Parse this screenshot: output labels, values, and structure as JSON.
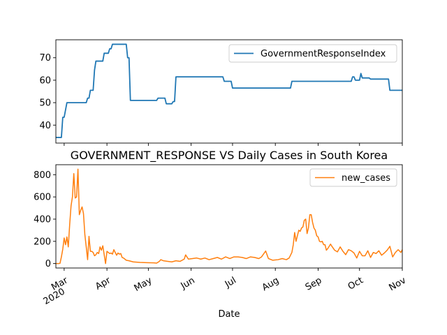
{
  "chart_data": [
    {
      "type": "line",
      "title": "",
      "xlabel": "",
      "ylabel": "",
      "xlim": [
        "2020-02-24",
        "2020-11-01"
      ],
      "ylim": [
        32,
        78
      ],
      "yticks": [
        40,
        50,
        60,
        70
      ],
      "legend": {
        "position": "top-right",
        "entries": [
          "GovernmentResponseIndex"
        ]
      },
      "series": [
        {
          "name": "GovernmentResponseIndex",
          "color": "#1f77b4",
          "points": [
            [
              "2020-02-24",
              34.5
            ],
            [
              "2020-02-28",
              34.5
            ],
            [
              "2020-02-29",
              43.5
            ],
            [
              "2020-03-01",
              43.5
            ],
            [
              "2020-03-03",
              50.0
            ],
            [
              "2020-03-17",
              50.0
            ],
            [
              "2020-03-18",
              52.0
            ],
            [
              "2020-03-19",
              52.0
            ],
            [
              "2020-03-20",
              55.5
            ],
            [
              "2020-03-22",
              55.5
            ],
            [
              "2020-03-23",
              64.5
            ],
            [
              "2020-03-24",
              68.5
            ],
            [
              "2020-03-29",
              68.5
            ],
            [
              "2020-03-30",
              72.0
            ],
            [
              "2020-04-02",
              72.0
            ],
            [
              "2020-04-03",
              74.0
            ],
            [
              "2020-04-04",
              74.0
            ],
            [
              "2020-04-05",
              76.0
            ],
            [
              "2020-04-15",
              76.0
            ],
            [
              "2020-04-16",
              70.0
            ],
            [
              "2020-04-17",
              70.0
            ],
            [
              "2020-04-18",
              51.0
            ],
            [
              "2020-05-07",
              51.0
            ],
            [
              "2020-05-08",
              52.0
            ],
            [
              "2020-05-13",
              52.0
            ],
            [
              "2020-05-14",
              49.5
            ],
            [
              "2020-05-18",
              49.5
            ],
            [
              "2020-05-19",
              50.5
            ],
            [
              "2020-05-20",
              50.5
            ],
            [
              "2020-05-21",
              61.5
            ],
            [
              "2020-06-24",
              61.5
            ],
            [
              "2020-06-25",
              59.5
            ],
            [
              "2020-06-30",
              59.5
            ],
            [
              "2020-07-01",
              56.5
            ],
            [
              "2020-08-12",
              56.5
            ],
            [
              "2020-08-13",
              59.5
            ],
            [
              "2020-09-25",
              59.5
            ],
            [
              "2020-09-26",
              61.5
            ],
            [
              "2020-09-27",
              61.5
            ],
            [
              "2020-09-28",
              60.0
            ],
            [
              "2020-10-01",
              60.0
            ],
            [
              "2020-10-02",
              63.0
            ],
            [
              "2020-10-03",
              61.0
            ],
            [
              "2020-10-08",
              61.0
            ],
            [
              "2020-10-09",
              60.5
            ],
            [
              "2020-10-22",
              60.5
            ],
            [
              "2020-10-23",
              55.5
            ],
            [
              "2020-11-01",
              55.5
            ]
          ]
        }
      ]
    },
    {
      "type": "line",
      "title": "GOVERNMENT_RESPONSE VS Daily Cases in South Korea",
      "xlabel": "Date",
      "ylabel": "",
      "xlim": [
        "2020-02-24",
        "2020-11-01"
      ],
      "ylim": [
        -40,
        890
      ],
      "yticks": [
        0,
        200,
        400,
        600,
        800
      ],
      "xticks": [
        {
          "date": "2020-03-01",
          "label": "Mar",
          "sublabel": "2020"
        },
        {
          "date": "2020-04-01",
          "label": "Apr",
          "sublabel": ""
        },
        {
          "date": "2020-05-01",
          "label": "May",
          "sublabel": ""
        },
        {
          "date": "2020-06-01",
          "label": "Jun",
          "sublabel": ""
        },
        {
          "date": "2020-07-01",
          "label": "Jul",
          "sublabel": ""
        },
        {
          "date": "2020-08-01",
          "label": "Aug",
          "sublabel": ""
        },
        {
          "date": "2020-09-01",
          "label": "Sep",
          "sublabel": ""
        },
        {
          "date": "2020-10-01",
          "label": "Oct",
          "sublabel": ""
        },
        {
          "date": "2020-11-01",
          "label": "Nov",
          "sublabel": ""
        }
      ],
      "legend": {
        "position": "top-right",
        "entries": [
          "new_cases"
        ]
      },
      "series": [
        {
          "name": "new_cases",
          "color": "#ff7f0e",
          "points": [
            [
              "2020-02-24",
              0
            ],
            [
              "2020-02-26",
              0
            ],
            [
              "2020-02-27",
              2
            ],
            [
              "2020-02-28",
              60
            ],
            [
              "2020-02-29",
              130
            ],
            [
              "2020-03-01",
              230
            ],
            [
              "2020-03-02",
              170
            ],
            [
              "2020-03-03",
              240
            ],
            [
              "2020-03-04",
              150
            ],
            [
              "2020-03-05",
              350
            ],
            [
              "2020-03-06",
              520
            ],
            [
              "2020-03-07",
              600
            ],
            [
              "2020-03-08",
              810
            ],
            [
              "2020-03-09",
              590
            ],
            [
              "2020-03-10",
              600
            ],
            [
              "2020-03-11",
              850
            ],
            [
              "2020-03-12",
              440
            ],
            [
              "2020-03-13",
              480
            ],
            [
              "2020-03-14",
              510
            ],
            [
              "2020-03-15",
              450
            ],
            [
              "2020-03-16",
              260
            ],
            [
              "2020-03-17",
              150
            ],
            [
              "2020-03-18",
              35
            ],
            [
              "2020-03-19",
              245
            ],
            [
              "2020-03-20",
              110
            ],
            [
              "2020-03-21",
              110
            ],
            [
              "2020-03-22",
              100
            ],
            [
              "2020-03-23",
              70
            ],
            [
              "2020-03-24",
              80
            ],
            [
              "2020-03-25",
              100
            ],
            [
              "2020-03-26",
              90
            ],
            [
              "2020-03-27",
              150
            ],
            [
              "2020-03-28",
              120
            ],
            [
              "2020-03-29",
              160
            ],
            [
              "2020-03-30",
              80
            ],
            [
              "2020-03-31",
              0
            ],
            [
              "2020-04-01",
              110
            ],
            [
              "2020-04-02",
              100
            ],
            [
              "2020-04-03",
              90
            ],
            [
              "2020-04-04",
              95
            ],
            [
              "2020-04-05",
              85
            ],
            [
              "2020-04-06",
              125
            ],
            [
              "2020-04-07",
              100
            ],
            [
              "2020-04-08",
              75
            ],
            [
              "2020-04-09",
              95
            ],
            [
              "2020-04-10",
              85
            ],
            [
              "2020-04-11",
              90
            ],
            [
              "2020-04-12",
              55
            ],
            [
              "2020-04-13",
              50
            ],
            [
              "2020-04-15",
              30
            ],
            [
              "2020-04-17",
              25
            ],
            [
              "2020-04-20",
              15
            ],
            [
              "2020-04-25",
              10
            ],
            [
              "2020-04-30",
              8
            ],
            [
              "2020-05-05",
              6
            ],
            [
              "2020-05-07",
              4
            ],
            [
              "2020-05-09",
              20
            ],
            [
              "2020-05-10",
              35
            ],
            [
              "2020-05-12",
              25
            ],
            [
              "2020-05-15",
              20
            ],
            [
              "2020-05-18",
              15
            ],
            [
              "2020-05-21",
              25
            ],
            [
              "2020-05-24",
              20
            ],
            [
              "2020-05-27",
              40
            ],
            [
              "2020-05-28",
              78
            ],
            [
              "2020-05-30",
              40
            ],
            [
              "2020-06-02",
              45
            ],
            [
              "2020-06-05",
              50
            ],
            [
              "2020-06-08",
              40
            ],
            [
              "2020-06-11",
              50
            ],
            [
              "2020-06-14",
              35
            ],
            [
              "2020-06-17",
              45
            ],
            [
              "2020-06-20",
              55
            ],
            [
              "2020-06-23",
              40
            ],
            [
              "2020-06-26",
              60
            ],
            [
              "2020-06-29",
              45
            ],
            [
              "2020-07-02",
              60
            ],
            [
              "2020-07-05",
              60
            ],
            [
              "2020-07-08",
              55
            ],
            [
              "2020-07-11",
              45
            ],
            [
              "2020-07-14",
              60
            ],
            [
              "2020-07-17",
              55
            ],
            [
              "2020-07-20",
              45
            ],
            [
              "2020-07-22",
              60
            ],
            [
              "2020-07-25",
              113
            ],
            [
              "2020-07-27",
              45
            ],
            [
              "2020-07-30",
              30
            ],
            [
              "2020-08-03",
              35
            ],
            [
              "2020-08-06",
              45
            ],
            [
              "2020-08-09",
              35
            ],
            [
              "2020-08-11",
              50
            ],
            [
              "2020-08-13",
              100
            ],
            [
              "2020-08-14",
              170
            ],
            [
              "2020-08-15",
              280
            ],
            [
              "2020-08-16",
              200
            ],
            [
              "2020-08-17",
              250
            ],
            [
              "2020-08-18",
              300
            ],
            [
              "2020-08-19",
              290
            ],
            [
              "2020-08-20",
              320
            ],
            [
              "2020-08-21",
              330
            ],
            [
              "2020-08-22",
              390
            ],
            [
              "2020-08-23",
              400
            ],
            [
              "2020-08-24",
              270
            ],
            [
              "2020-08-25",
              320
            ],
            [
              "2020-08-26",
              440
            ],
            [
              "2020-08-27",
              440
            ],
            [
              "2020-08-28",
              370
            ],
            [
              "2020-08-29",
              320
            ],
            [
              "2020-08-30",
              300
            ],
            [
              "2020-08-31",
              250
            ],
            [
              "2020-09-01",
              240
            ],
            [
              "2020-09-02",
              200
            ],
            [
              "2020-09-03",
              195
            ],
            [
              "2020-09-04",
              200
            ],
            [
              "2020-09-05",
              170
            ],
            [
              "2020-09-06",
              170
            ],
            [
              "2020-09-07",
              120
            ],
            [
              "2020-09-08",
              135
            ],
            [
              "2020-09-09",
              155
            ],
            [
              "2020-09-10",
              175
            ],
            [
              "2020-09-11",
              155
            ],
            [
              "2020-09-13",
              120
            ],
            [
              "2020-09-15",
              105
            ],
            [
              "2020-09-17",
              150
            ],
            [
              "2020-09-19",
              110
            ],
            [
              "2020-09-21",
              80
            ],
            [
              "2020-09-23",
              125
            ],
            [
              "2020-09-25",
              115
            ],
            [
              "2020-09-27",
              95
            ],
            [
              "2020-09-29",
              50
            ],
            [
              "2020-10-01",
              110
            ],
            [
              "2020-10-03",
              70
            ],
            [
              "2020-10-05",
              70
            ],
            [
              "2020-10-07",
              115
            ],
            [
              "2020-10-09",
              55
            ],
            [
              "2020-10-11",
              100
            ],
            [
              "2020-10-13",
              90
            ],
            [
              "2020-10-15",
              115
            ],
            [
              "2020-10-17",
              75
            ],
            [
              "2020-10-19",
              95
            ],
            [
              "2020-10-21",
              120
            ],
            [
              "2020-10-23",
              155
            ],
            [
              "2020-10-25",
              60
            ],
            [
              "2020-10-27",
              100
            ],
            [
              "2020-10-29",
              125
            ],
            [
              "2020-10-31",
              100
            ],
            [
              "2020-11-01",
              125
            ]
          ]
        }
      ]
    }
  ]
}
